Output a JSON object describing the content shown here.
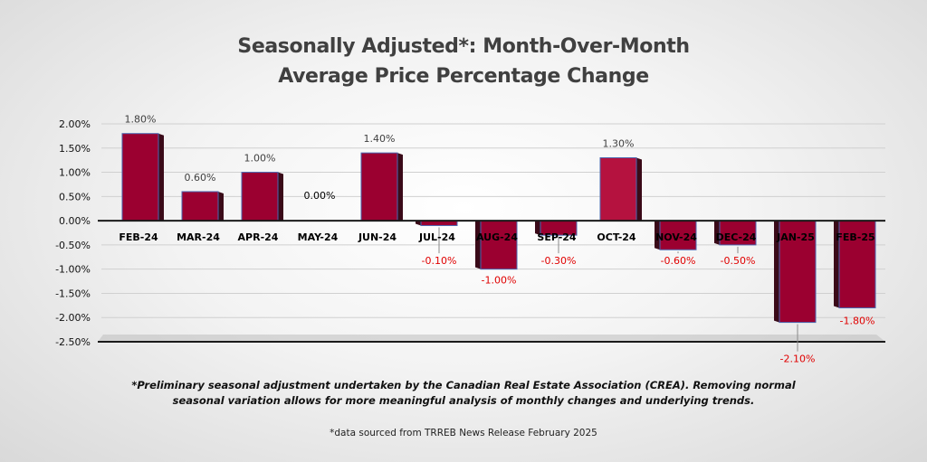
{
  "chart_data": {
    "type": "bar",
    "title_line1": "Seasonally Adjusted*:  Month-Over-Month",
    "title_line2": "Average Price Percentage Change",
    "categories": [
      "FEB-24",
      "MAR-24",
      "APR-24",
      "MAY-24",
      "JUN-24",
      "JUL-24",
      "AUG-24",
      "SEP-24",
      "OCT-24",
      "NOV-24",
      "DEC-24",
      "JAN-25",
      "FEB-25"
    ],
    "values": [
      1.8,
      0.6,
      1.0,
      0.0,
      1.4,
      -0.1,
      -1.0,
      -0.3,
      1.3,
      -0.6,
      -0.5,
      -2.1,
      -1.8
    ],
    "data_labels": [
      "1.80%",
      "0.60%",
      "1.00%",
      "0.00%",
      "1.40%",
      "-0.10%",
      "-1.00%",
      "-0.30%",
      "1.30%",
      "-0.60%",
      "-0.50%",
      "-2.10%",
      "-1.80%"
    ],
    "y_ticks": [
      2.0,
      1.5,
      1.0,
      0.5,
      0.0,
      -0.5,
      -1.0,
      -1.5,
      -2.0,
      -2.5
    ],
    "y_tick_labels": [
      "2.00%",
      "1.50%",
      "1.00%",
      "0.50%",
      "0.00%",
      "-0.50%",
      "-1.00%",
      "-1.50%",
      "-2.00%",
      "-2.50%"
    ],
    "ylim": [
      -2.5,
      2.0
    ],
    "xlabel": "",
    "ylabel": "",
    "grid": true,
    "colors": {
      "bar": "#9b0030",
      "bar_light": "#b5123f",
      "bar_side": "#3a0a18",
      "bar_edge": "#4a66b0",
      "positive_label": "#404040",
      "negative_label": "#e00000",
      "gridline": "#d0d0d0"
    }
  },
  "footnote": {
    "line1": "*Preliminary seasonal adjustment undertaken by the Canadian Real Estate Association (CREA).  Removing normal",
    "line2": "seasonal variation allows for more meaningful analysis of monthly changes and underlying trends."
  },
  "source": "*data sourced from TRREB News Release February 2025"
}
